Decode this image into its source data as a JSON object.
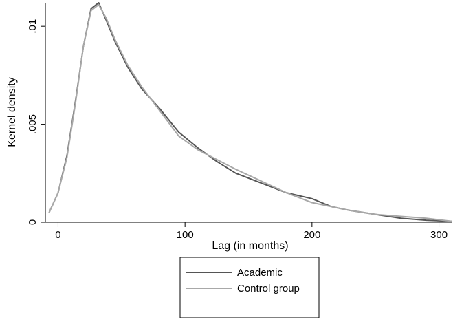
{
  "chart_data": {
    "type": "line",
    "title": "",
    "xlabel": "Lag (in months)",
    "ylabel": "Kernel density",
    "xlim": [
      -10,
      310
    ],
    "ylim": [
      0,
      0.0112
    ],
    "x_ticks": [
      0,
      100,
      200,
      300
    ],
    "x_tick_labels": [
      "0",
      "100",
      "200",
      "300"
    ],
    "y_ticks": [
      0,
      0.005,
      0.01
    ],
    "y_tick_labels": [
      "0",
      ".005",
      ".01"
    ],
    "grid": false,
    "legend_position": "bottom",
    "series": [
      {
        "name": "Academic",
        "color": "#555555",
        "points": [
          [
            -7,
            0.0005
          ],
          [
            0,
            0.0015
          ],
          [
            7,
            0.0034
          ],
          [
            14,
            0.0063
          ],
          [
            20,
            0.009
          ],
          [
            26,
            0.0109
          ],
          [
            32,
            0.0112
          ],
          [
            38,
            0.0103
          ],
          [
            45,
            0.0092
          ],
          [
            55,
            0.0079
          ],
          [
            66,
            0.0068
          ],
          [
            80,
            0.0058
          ],
          [
            95,
            0.0046
          ],
          [
            110,
            0.0038
          ],
          [
            125,
            0.0031
          ],
          [
            140,
            0.0025
          ],
          [
            160,
            0.002
          ],
          [
            180,
            0.0015
          ],
          [
            200,
            0.0012
          ],
          [
            215,
            0.0008
          ],
          [
            230,
            0.0006
          ],
          [
            250,
            0.0004
          ],
          [
            270,
            0.0002
          ],
          [
            290,
            0.0001
          ],
          [
            310,
            5e-05
          ]
        ]
      },
      {
        "name": "Control group",
        "color": "#a8a8a8",
        "points": [
          [
            -7,
            0.0005
          ],
          [
            0,
            0.0015
          ],
          [
            7,
            0.0033
          ],
          [
            14,
            0.0062
          ],
          [
            20,
            0.009
          ],
          [
            26,
            0.0108
          ],
          [
            32,
            0.0111
          ],
          [
            38,
            0.0104
          ],
          [
            45,
            0.0093
          ],
          [
            55,
            0.008
          ],
          [
            66,
            0.0069
          ],
          [
            80,
            0.0057
          ],
          [
            95,
            0.0044
          ],
          [
            110,
            0.0037
          ],
          [
            125,
            0.0032
          ],
          [
            140,
            0.0027
          ],
          [
            160,
            0.0021
          ],
          [
            180,
            0.0015
          ],
          [
            200,
            0.001
          ],
          [
            215,
            0.0008
          ],
          [
            230,
            0.0006
          ],
          [
            250,
            0.0004
          ],
          [
            270,
            0.0003
          ],
          [
            290,
            0.0002
          ],
          [
            310,
            5e-05
          ]
        ]
      }
    ]
  }
}
